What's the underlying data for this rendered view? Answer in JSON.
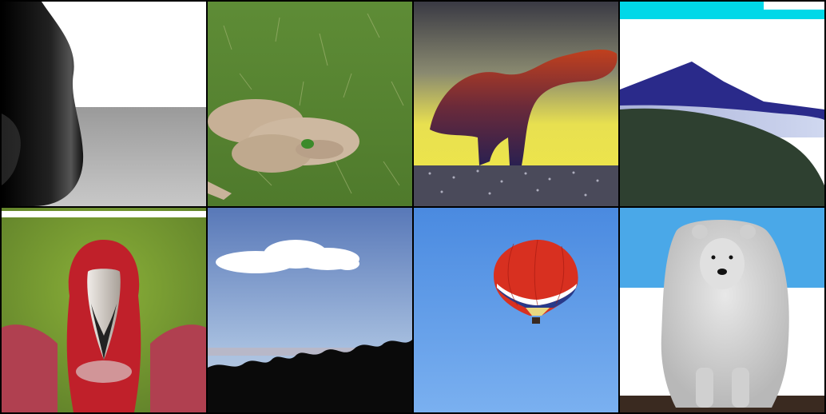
{
  "grid": {
    "rows": 2,
    "columns": 4,
    "background": "#000000",
    "tiles": [
      {
        "subject": "dark-blob-on-white",
        "colors": {
          "bg": "#ffffff",
          "floor": "#a8a8a8",
          "object": "#111111"
        }
      },
      {
        "subject": "animal-lying-on-grass",
        "colors": {
          "grass": "#5a8a30",
          "animal": "#c9b39a"
        }
      },
      {
        "subject": "red-furry-dinosaur-silhouette",
        "colors": {
          "sky": "#e8e04a",
          "creature": "#b33a1e",
          "ground": "#2a2a3a"
        }
      },
      {
        "subject": "blue-mountain-landscape",
        "colors": {
          "sky": "#00d8e8",
          "mountain": "#2a2a8a",
          "land": "#2e4030"
        }
      },
      {
        "subject": "red-bird-portrait",
        "colors": {
          "bg": "#7aa030",
          "bird": "#c0202a",
          "beak": "#d8d0c8"
        }
      },
      {
        "subject": "cloud-and-treetops",
        "colors": {
          "sky": "#6a90c8",
          "cloud": "#ffffff",
          "trees": "#0a0a0a"
        }
      },
      {
        "subject": "hot-air-balloon",
        "colors": {
          "sky": "#5a9ae8",
          "balloon": "#d83020",
          "stripe": "#283a8a"
        }
      },
      {
        "subject": "white-polar-bear",
        "colors": {
          "sky": "#4aa8e8",
          "bear": "#d8d8d8",
          "floor": "#3a2a20"
        }
      }
    ]
  }
}
